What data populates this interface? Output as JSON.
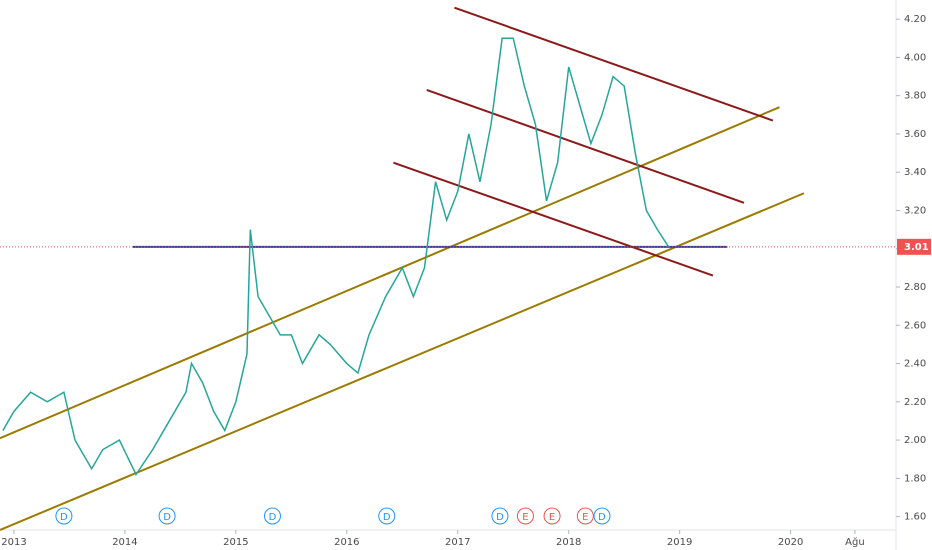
{
  "chart_data": {
    "type": "line",
    "x": [
      2012.9,
      2013.0,
      2013.15,
      2013.3,
      2013.45,
      2013.55,
      2013.7,
      2013.8,
      2013.95,
      2014.1,
      2014.25,
      2014.4,
      2014.55,
      2014.6,
      2014.7,
      2014.8,
      2014.9,
      2015.0,
      2015.1,
      2015.13,
      2015.2,
      2015.3,
      2015.4,
      2015.5,
      2015.6,
      2015.75,
      2015.85,
      2016.0,
      2016.1,
      2016.2,
      2016.35,
      2016.5,
      2016.6,
      2016.7,
      2016.8,
      2016.9,
      2017.0,
      2017.1,
      2017.2,
      2017.3,
      2017.4,
      2017.5,
      2017.6,
      2017.7,
      2017.8,
      2017.9,
      2018.0,
      2018.1,
      2018.2,
      2018.3,
      2018.4,
      2018.5,
      2018.6,
      2018.7,
      2018.8,
      2018.9
    ],
    "series": [
      {
        "color": "#26a69a",
        "values": [
          2.05,
          2.15,
          2.25,
          2.2,
          2.25,
          2.0,
          1.85,
          1.95,
          2.0,
          1.82,
          1.95,
          2.1,
          2.25,
          2.4,
          2.3,
          2.15,
          2.05,
          2.2,
          2.45,
          3.1,
          2.75,
          2.65,
          2.55,
          2.55,
          2.4,
          2.55,
          2.5,
          2.4,
          2.35,
          2.55,
          2.75,
          2.9,
          2.75,
          2.9,
          3.35,
          3.15,
          3.3,
          3.6,
          3.35,
          3.65,
          4.1,
          4.1,
          3.85,
          3.65,
          3.25,
          3.45,
          3.95,
          3.75,
          3.55,
          3.7,
          3.9,
          3.85,
          3.5,
          3.2,
          3.1,
          3.01
        ]
      }
    ],
    "xlim": [
      2012.874,
      2020.95
    ],
    "ylim": [
      1.53,
      4.3
    ],
    "xticks": [
      2013,
      2014,
      2015,
      2016,
      2017,
      2018,
      2019,
      2020,
      {
        "value": 2020.58,
        "label": "Ağu"
      }
    ],
    "yticks": [
      {
        "value": 1.6,
        "label": "1.60"
      },
      {
        "value": 1.8,
        "label": "1.80"
      },
      {
        "value": 2.0,
        "label": "2.00"
      },
      {
        "value": 2.2,
        "label": "2.20"
      },
      {
        "value": 2.4,
        "label": "2.40"
      },
      {
        "value": 2.6,
        "label": "2.60"
      },
      {
        "value": 2.8,
        "label": "2.80"
      },
      {
        "value": 3.0,
        "label": "3.00"
      },
      {
        "value": 3.2,
        "label": "3.20"
      },
      {
        "value": 3.4,
        "label": "3.40"
      },
      {
        "value": 3.6,
        "label": "3.60"
      },
      {
        "value": 3.8,
        "label": "3.80"
      },
      {
        "value": 4.0,
        "label": "4.00"
      },
      {
        "value": 4.2,
        "label": "4.20"
      }
    ],
    "last_price": {
      "value": 3.01,
      "label": "3.01",
      "color": "#ef5350"
    },
    "trendlines": [
      {
        "color": "#9b7a00",
        "x": [
          2012.874,
          2020.12
        ],
        "y": [
          1.53,
          3.29
        ]
      },
      {
        "color": "#9b7a00",
        "x": [
          2012.874,
          2019.9
        ],
        "y": [
          2.01,
          3.74
        ]
      },
      {
        "color": "#2f3fa0",
        "x": [
          2014.07,
          2019.43
        ],
        "y": [
          3.01,
          3.01
        ]
      },
      {
        "color": "#8b1a1a",
        "x": [
          2016.97,
          2019.84
        ],
        "y": [
          4.26,
          3.67
        ]
      },
      {
        "color": "#8b1a1a",
        "x": [
          2016.72,
          2019.58
        ],
        "y": [
          3.83,
          3.24
        ]
      },
      {
        "color": "#8b1a1a",
        "x": [
          2016.42,
          2019.3
        ],
        "y": [
          3.45,
          2.86
        ]
      }
    ],
    "events": [
      {
        "x": 2013.45,
        "label": "D",
        "color": "#2196f3"
      },
      {
        "x": 2014.38,
        "label": "D",
        "color": "#2196f3"
      },
      {
        "x": 2015.33,
        "label": "D",
        "color": "#2196f3"
      },
      {
        "x": 2016.36,
        "label": "D",
        "color": "#2196f3"
      },
      {
        "x": 2017.38,
        "label": "D",
        "color": "#2196f3"
      },
      {
        "x": 2017.61,
        "label": "E",
        "color": "#ef5350"
      },
      {
        "x": 2017.85,
        "label": "E",
        "color": "#ef5350"
      },
      {
        "x": 2018.15,
        "label": "E",
        "color": "#ef5350"
      },
      {
        "x": 2018.3,
        "label": "D",
        "color": "#2196f3"
      }
    ]
  }
}
